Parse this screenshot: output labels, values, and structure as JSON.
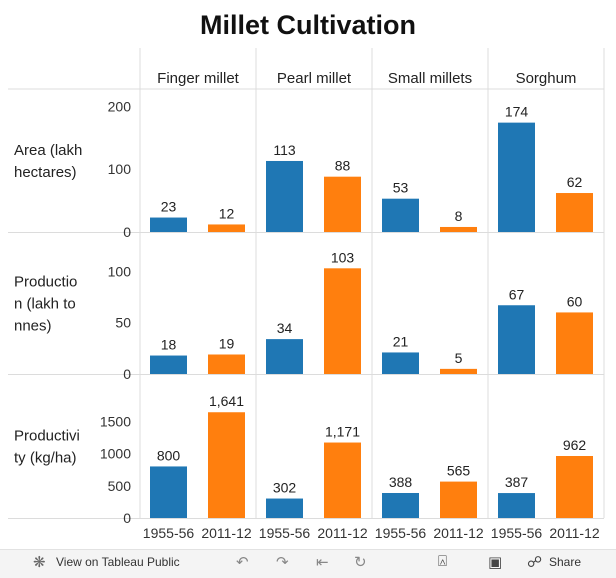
{
  "page_title": "Millet Cultivation",
  "chart_data": {
    "type": "bar",
    "title": "Millet Cultivation",
    "crops": [
      "Finger millet",
      "Pearl millet",
      "Small millets",
      "Sorghum"
    ],
    "years": [
      "1955-56",
      "2011-12"
    ],
    "year_colors": [
      "#1f77b4",
      "#ff7f0e"
    ],
    "rows": [
      {
        "label": "Area (lakh hectares)",
        "label_lines": [
          "Area (lakh",
          "hectares)"
        ],
        "ylim": [
          0,
          210
        ],
        "ticks": [
          0,
          100,
          200
        ],
        "tick_labels": [
          "0",
          "100",
          "200"
        ],
        "values": [
          [
            23,
            12
          ],
          [
            113,
            88
          ],
          [
            53,
            8
          ],
          [
            174,
            62
          ]
        ],
        "value_labels": [
          [
            "23",
            "12"
          ],
          [
            "113",
            "88"
          ],
          [
            "53",
            "8"
          ],
          [
            "174",
            "62"
          ]
        ]
      },
      {
        "label": "Production (lakh tonnes)",
        "label_lines": [
          "Productio",
          "n (lakh to",
          "nnes)"
        ],
        "ylim": [
          0,
          115
        ],
        "ticks": [
          0,
          50,
          100
        ],
        "tick_labels": [
          "0",
          "50",
          "100"
        ],
        "values": [
          [
            18,
            19
          ],
          [
            34,
            103
          ],
          [
            21,
            5
          ],
          [
            67,
            60
          ]
        ],
        "value_labels": [
          [
            "18",
            "19"
          ],
          [
            "34",
            "103"
          ],
          [
            "21",
            "5"
          ],
          [
            "67",
            "60"
          ]
        ]
      },
      {
        "label": "Productivity (kg/ha)",
        "label_lines": [
          "Productivi",
          "ty (kg/ha)"
        ],
        "ylim": [
          0,
          1800
        ],
        "ticks": [
          0,
          500,
          1000,
          1500
        ],
        "tick_labels": [
          "0",
          "500",
          "1000",
          "1500"
        ],
        "values": [
          [
            800,
            1641
          ],
          [
            302,
            1171
          ],
          [
            388,
            565
          ],
          [
            387,
            962
          ]
        ],
        "value_labels": [
          [
            "800",
            "1,641"
          ],
          [
            "302",
            "1,171"
          ],
          [
            "388",
            "565"
          ],
          [
            "387",
            "962"
          ]
        ]
      }
    ],
    "grid": false,
    "legend": "none"
  },
  "toolbar": {
    "view_label": "View on Tableau Public",
    "share_label": "Share",
    "icons": [
      "tableau-logo-icon",
      "undo-icon",
      "redo-icon",
      "revert-icon",
      "refresh-icon",
      "download-icon",
      "fullscreen-icon",
      "share-icon"
    ]
  }
}
